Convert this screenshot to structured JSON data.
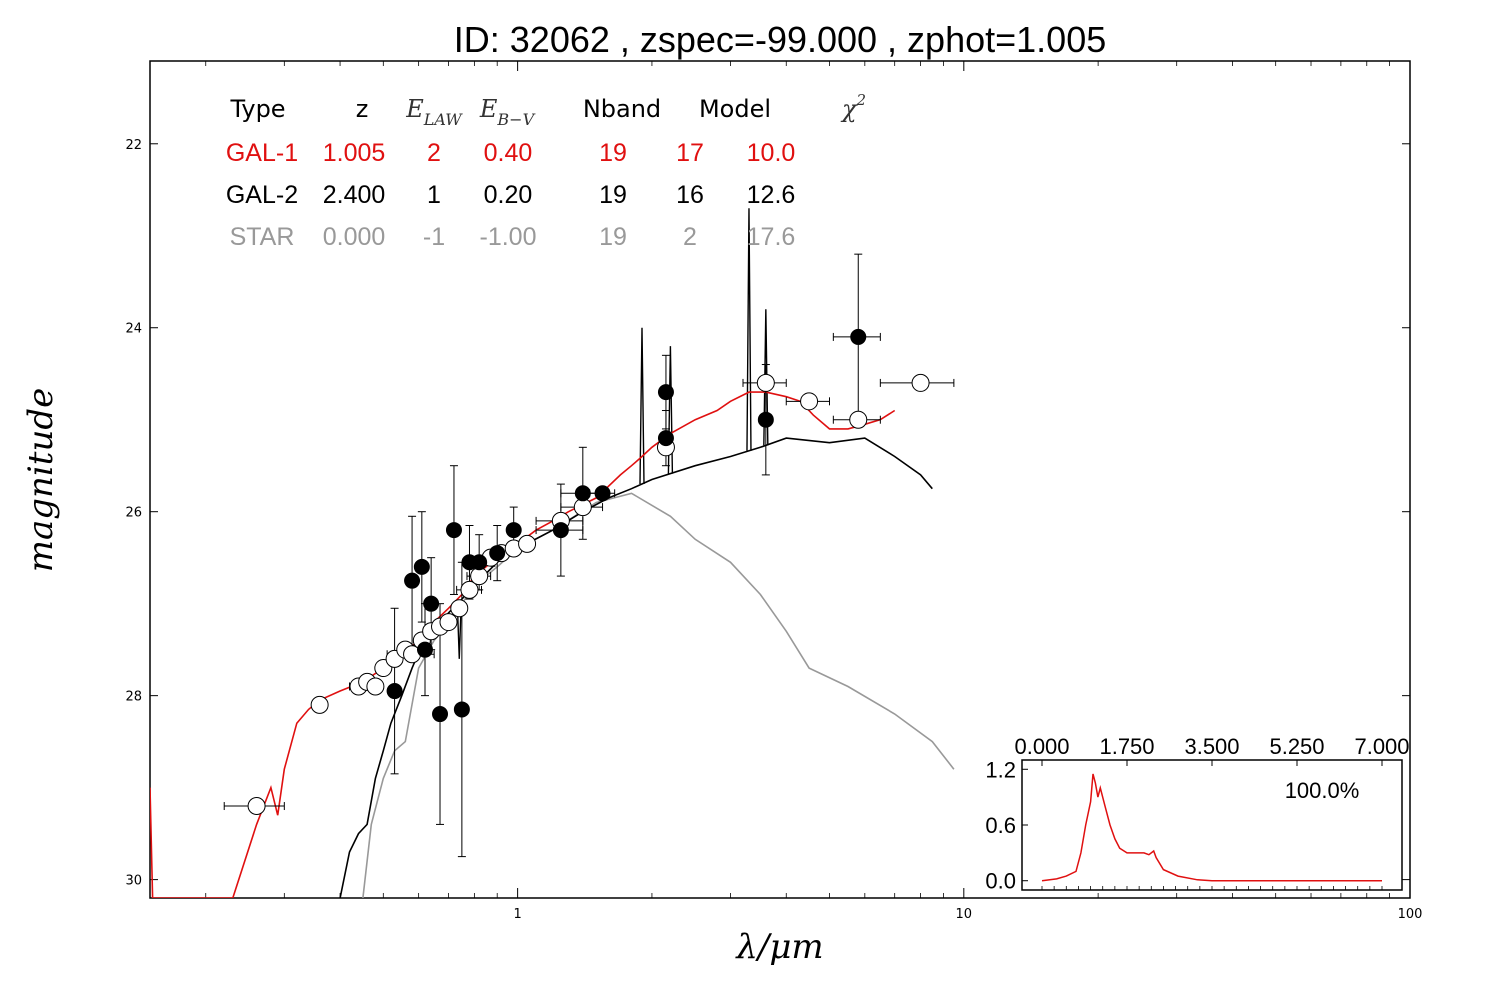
{
  "title": "ID:  32062 , zspec=-99.000 , zphot=1.005",
  "colors": {
    "gal1": "#e01010",
    "gal2": "#000000",
    "star": "#999999"
  },
  "table": {
    "headers": [
      {
        "key": "type",
        "text": "Type",
        "math": false
      },
      {
        "key": "z",
        "text": "z",
        "math": false
      },
      {
        "key": "elaw",
        "text": "E",
        "sub": "LAW",
        "math": true
      },
      {
        "key": "ebv",
        "text": "E",
        "sub": "B−V",
        "math": true
      },
      {
        "key": "nband",
        "text": "Nband",
        "math": false
      },
      {
        "key": "model",
        "text": "Model",
        "math": false
      },
      {
        "key": "chi2",
        "text": "χ",
        "sup": "2",
        "math": true
      }
    ],
    "rows": [
      {
        "name": "GAL-1",
        "color": "#e01010",
        "cells": [
          "GAL-1",
          "1.005",
          "2",
          "0.40",
          "19",
          "17",
          "10.0"
        ]
      },
      {
        "name": "GAL-2",
        "color": "#000000",
        "cells": [
          "GAL-2",
          "2.400",
          "1",
          "0.20",
          "19",
          "16",
          "12.6"
        ]
      },
      {
        "name": "STAR",
        "color": "#999999",
        "cells": [
          "STAR",
          "0.000",
          "-1",
          "-1.00",
          "19",
          "2",
          "17.6"
        ]
      }
    ]
  },
  "chart_data": [
    {
      "type": "scatter",
      "xlabel": "λ/μm",
      "ylabel": "magnitude",
      "xscale": "log",
      "xlim": [
        0.15,
        100
      ],
      "ylim": [
        30.2,
        21.1
      ],
      "y_inverted": true,
      "xticks": [
        1,
        10,
        100
      ],
      "xtick_labels": [
        "1",
        "10",
        "100"
      ],
      "yticks": [
        22,
        24,
        26,
        28,
        30
      ],
      "ytick_labels": [
        "22",
        "24",
        "26",
        "28",
        "30"
      ],
      "observed_points": [
        {
          "x": 0.26,
          "y": 29.2,
          "xerr": 0.04
        },
        {
          "x": 0.36,
          "y": 28.1
        },
        {
          "x": 0.44,
          "y": 27.9,
          "xerr": 0.02
        },
        {
          "x": 0.46,
          "y": 27.85
        },
        {
          "x": 0.48,
          "y": 27.9
        },
        {
          "x": 0.5,
          "y": 27.7
        },
        {
          "x": 0.53,
          "y": 27.6
        },
        {
          "x": 0.56,
          "y": 27.5
        },
        {
          "x": 0.58,
          "y": 27.55,
          "xerr": 0.07
        },
        {
          "x": 0.61,
          "y": 27.4
        },
        {
          "x": 0.64,
          "y": 27.3
        },
        {
          "x": 0.67,
          "y": 27.25
        },
        {
          "x": 0.7,
          "y": 27.2
        },
        {
          "x": 0.74,
          "y": 27.05
        },
        {
          "x": 0.78,
          "y": 26.85,
          "xerr": 0.05
        },
        {
          "x": 0.82,
          "y": 26.7,
          "xerr": 0.05
        },
        {
          "x": 0.87,
          "y": 26.5
        },
        {
          "x": 0.92,
          "y": 26.45
        },
        {
          "x": 0.98,
          "y": 26.4
        },
        {
          "x": 1.05,
          "y": 26.35
        },
        {
          "x": 1.25,
          "y": 26.1,
          "xerr": 0.15
        },
        {
          "x": 1.4,
          "y": 25.95,
          "xerr": 0.15
        },
        {
          "x": 2.15,
          "y": 25.3
        },
        {
          "x": 3.6,
          "y": 24.6,
          "xerr": 0.4
        },
        {
          "x": 4.5,
          "y": 24.8,
          "xerr": 0.5
        },
        {
          "x": 5.8,
          "y": 25.0,
          "xerr": 0.7
        },
        {
          "x": 8.0,
          "y": 24.6,
          "xerr": 1.5
        }
      ],
      "filled_points": [
        {
          "x": 0.53,
          "y": 27.95,
          "yerr": 0.9
        },
        {
          "x": 0.58,
          "y": 26.75,
          "yerr": 0.7
        },
        {
          "x": 0.61,
          "y": 26.6,
          "yerr": 0.6
        },
        {
          "x": 0.62,
          "y": 27.5,
          "yerr": 0.5
        },
        {
          "x": 0.64,
          "y": 27.0,
          "yerr": 0.5
        },
        {
          "x": 0.67,
          "y": 28.2,
          "yerr": 1.2
        },
        {
          "x": 0.72,
          "y": 26.2,
          "yerr": 0.7
        },
        {
          "x": 0.75,
          "y": 28.15,
          "yerr": 1.6
        },
        {
          "x": 0.78,
          "y": 26.55,
          "yerr": 0.4
        },
        {
          "x": 0.82,
          "y": 26.55,
          "yerr": 0.3
        },
        {
          "x": 0.9,
          "y": 26.45,
          "yerr": 0.3
        },
        {
          "x": 0.98,
          "y": 26.2,
          "yerr": 0.25
        },
        {
          "x": 1.25,
          "y": 26.2,
          "yerr": 0.5,
          "xerr": 0.15
        },
        {
          "x": 1.4,
          "y": 25.8,
          "yerr": 0.5,
          "xerr": 0.15
        },
        {
          "x": 1.55,
          "y": 25.8,
          "xerr": 0.1
        },
        {
          "x": 2.15,
          "y": 24.7,
          "yerr": 0.4
        },
        {
          "x": 2.15,
          "y": 25.2,
          "yerr": 0.3
        },
        {
          "x": 3.6,
          "y": 25.0,
          "yerr": 0.6
        },
        {
          "x": 5.8,
          "y": 24.1,
          "yerr": 0.9,
          "xerr": 0.7
        }
      ],
      "model_gal1": {
        "name": "GAL-1",
        "color": "#e01010",
        "points": [
          [
            0.15,
            29.0
          ],
          [
            0.152,
            30.2
          ],
          [
            0.23,
            30.2
          ],
          [
            0.26,
            29.4
          ],
          [
            0.28,
            29.0
          ],
          [
            0.29,
            29.3
          ],
          [
            0.3,
            28.8
          ],
          [
            0.32,
            28.3
          ],
          [
            0.34,
            28.15
          ],
          [
            0.36,
            28.05
          ],
          [
            0.4,
            27.95
          ],
          [
            0.45,
            27.85
          ],
          [
            0.5,
            27.7
          ],
          [
            0.55,
            27.55
          ],
          [
            0.6,
            27.4
          ],
          [
            0.65,
            27.2
          ],
          [
            0.7,
            27.05
          ],
          [
            0.75,
            26.9
          ],
          [
            0.8,
            26.7
          ],
          [
            0.9,
            26.5
          ],
          [
            1.0,
            26.35
          ],
          [
            1.1,
            26.2
          ],
          [
            1.2,
            26.1
          ],
          [
            1.3,
            26.0
          ],
          [
            1.5,
            25.85
          ],
          [
            1.7,
            25.6
          ],
          [
            1.8,
            25.5
          ],
          [
            1.9,
            25.4
          ],
          [
            2.0,
            25.3
          ],
          [
            2.2,
            25.15
          ],
          [
            2.5,
            25.0
          ],
          [
            2.8,
            24.9
          ],
          [
            3.0,
            24.8
          ],
          [
            3.3,
            24.7
          ],
          [
            3.6,
            24.7
          ],
          [
            4.0,
            24.75
          ],
          [
            4.3,
            24.8
          ],
          [
            4.6,
            24.95
          ],
          [
            5.0,
            25.1
          ],
          [
            5.5,
            25.1
          ],
          [
            6.0,
            25.05
          ],
          [
            6.5,
            25.0
          ],
          [
            7.0,
            24.9
          ]
        ]
      },
      "model_gal2": {
        "name": "GAL-2",
        "color": "#000000",
        "points": [
          [
            0.4,
            30.2
          ],
          [
            0.42,
            29.7
          ],
          [
            0.44,
            29.5
          ],
          [
            0.46,
            29.4
          ],
          [
            0.48,
            28.9
          ],
          [
            0.5,
            28.6
          ],
          [
            0.52,
            28.3
          ],
          [
            0.55,
            28.0
          ],
          [
            0.58,
            27.7
          ],
          [
            0.61,
            27.45
          ],
          [
            0.65,
            27.3
          ],
          [
            0.7,
            27.1
          ],
          [
            0.75,
            26.95
          ],
          [
            0.8,
            26.8
          ],
          [
            0.9,
            26.55
          ],
          [
            1.0,
            26.4
          ],
          [
            1.2,
            26.2
          ],
          [
            1.4,
            26.0
          ],
          [
            1.6,
            25.85
          ],
          [
            1.8,
            25.75
          ],
          [
            2.0,
            25.65
          ],
          [
            2.5,
            25.5
          ],
          [
            3.0,
            25.4
          ],
          [
            3.5,
            25.3
          ],
          [
            4.0,
            25.2
          ],
          [
            5.0,
            25.25
          ],
          [
            6.0,
            25.2
          ],
          [
            7.0,
            25.4
          ],
          [
            8.0,
            25.6
          ],
          [
            8.5,
            25.75
          ]
        ]
      },
      "model_gal2_lines": [
        [
          0.74,
          27.6
        ],
        [
          0.88,
          26.5
        ],
        [
          1.9,
          24.0
        ],
        [
          2.2,
          24.2
        ],
        [
          3.3,
          22.7
        ],
        [
          3.6,
          23.8
        ]
      ],
      "model_star": {
        "name": "STAR",
        "color": "#999999",
        "points": [
          [
            0.45,
            30.2
          ],
          [
            0.47,
            29.4
          ],
          [
            0.5,
            28.9
          ],
          [
            0.53,
            28.6
          ],
          [
            0.56,
            28.5
          ],
          [
            0.6,
            27.7
          ],
          [
            0.65,
            27.4
          ],
          [
            0.7,
            27.2
          ],
          [
            0.75,
            27.0
          ],
          [
            0.8,
            26.8
          ],
          [
            0.9,
            26.6
          ],
          [
            1.0,
            26.4
          ],
          [
            1.2,
            26.2
          ],
          [
            1.5,
            25.9
          ],
          [
            1.8,
            25.8
          ],
          [
            2.2,
            26.05
          ],
          [
            2.5,
            26.3
          ],
          [
            3.0,
            26.55
          ],
          [
            3.5,
            26.9
          ],
          [
            4.0,
            27.3
          ],
          [
            4.5,
            27.7
          ],
          [
            5.5,
            27.9
          ],
          [
            7.0,
            28.2
          ],
          [
            8.5,
            28.5
          ],
          [
            9.5,
            28.8
          ]
        ]
      }
    },
    {
      "type": "line",
      "series": [
        {
          "name": "",
          "color": "#e01010"
        }
      ],
      "xlim": [
        0.0,
        7.0
      ],
      "ylim": [
        -0.1,
        1.3
      ],
      "xticks": [
        0.0,
        1.75,
        3.5,
        5.25,
        7.0
      ],
      "xtick_labels": [
        "0.000",
        "1.750",
        "3.500",
        "5.250",
        "7.000"
      ],
      "yticks": [
        0.0,
        0.6,
        1.2
      ],
      "ytick_labels": [
        "0.0",
        "0.6",
        "1.2"
      ],
      "annotation": "100.0%",
      "points": [
        [
          0.0,
          0.0
        ],
        [
          0.3,
          0.02
        ],
        [
          0.5,
          0.05
        ],
        [
          0.7,
          0.1
        ],
        [
          0.8,
          0.3
        ],
        [
          0.9,
          0.6
        ],
        [
          1.0,
          0.85
        ],
        [
          1.05,
          1.15
        ],
        [
          1.1,
          1.05
        ],
        [
          1.15,
          0.9
        ],
        [
          1.2,
          1.0
        ],
        [
          1.3,
          0.8
        ],
        [
          1.4,
          0.6
        ],
        [
          1.5,
          0.45
        ],
        [
          1.6,
          0.35
        ],
        [
          1.75,
          0.3
        ],
        [
          1.9,
          0.3
        ],
        [
          2.1,
          0.3
        ],
        [
          2.2,
          0.28
        ],
        [
          2.3,
          0.32
        ],
        [
          2.35,
          0.25
        ],
        [
          2.5,
          0.12
        ],
        [
          2.8,
          0.05
        ],
        [
          3.2,
          0.01
        ],
        [
          3.5,
          0.0
        ],
        [
          7.0,
          0.0
        ]
      ]
    }
  ]
}
